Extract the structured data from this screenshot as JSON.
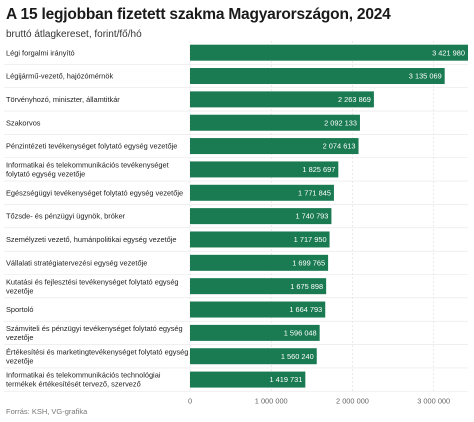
{
  "chart_data": {
    "type": "bar",
    "orientation": "horizontal",
    "title": "A 15 legjobban fizetett szakma Magyarországon, 2024",
    "subtitle": "bruttó átlagkereset, forint/fő/hó",
    "source": "Forrás: KSH, VG-grafika",
    "categories": [
      [
        "Légi forgalmi irányító"
      ],
      [
        "Légijármű-vezető, hajózómérnök"
      ],
      [
        "Törvényhozó, miniszter, államtitkár"
      ],
      [
        "Szakorvos"
      ],
      [
        "Pénzintézeti tevékenységet folytató egység vezetője"
      ],
      [
        "Informatikai és telekommunikációs tevékenységet",
        "folytató egység vezetője"
      ],
      [
        "Egészségügyi tevékenységet folytató egység vezetője"
      ],
      [
        "Tőzsde- és pénzügyi ügynök, bróker"
      ],
      [
        "Személyzeti vezető, humánpolitikai egység vezetője"
      ],
      [
        "Vállalati stratégiatervezési egység vezetője"
      ],
      [
        "Kutatási és fejlesztési tevékenységet folytató egység",
        "vezetője"
      ],
      [
        "Sportoló"
      ],
      [
        "Számviteli és pénzügyi tevékenységet folytató egység",
        "vezetője"
      ],
      [
        "Értékesítési és marketingtevékenységet folytató egység",
        "vezetője"
      ],
      [
        "Informatikai és telekommunikációs technológiai",
        "termékek értékesítését tervező, szervező"
      ]
    ],
    "values": [
      3421980,
      3135069,
      2263869,
      2092133,
      2074613,
      1825697,
      1771845,
      1740793,
      1717950,
      1699765,
      1675898,
      1664793,
      1596048,
      1560240,
      1419731
    ],
    "value_labels": [
      "3 421 980",
      "3 135 069",
      "2 263 869",
      "2 092 133",
      "2 074 613",
      "1 825 697",
      "1 771 845",
      "1 740 793",
      "1 717 950",
      "1 699 765",
      "1 675 898",
      "1 664 793",
      "1 596 048",
      "1 560 240",
      "1 419 731"
    ],
    "xlim": [
      0,
      3421980
    ],
    "xticks": [
      0,
      1000000,
      2000000,
      3000000
    ],
    "xtick_labels": [
      "0",
      "1 000 000",
      "2 000 000",
      "3 000 000"
    ],
    "bar_color": "#1a7a52",
    "value_label_color": "#ffffff",
    "grid": true
  }
}
